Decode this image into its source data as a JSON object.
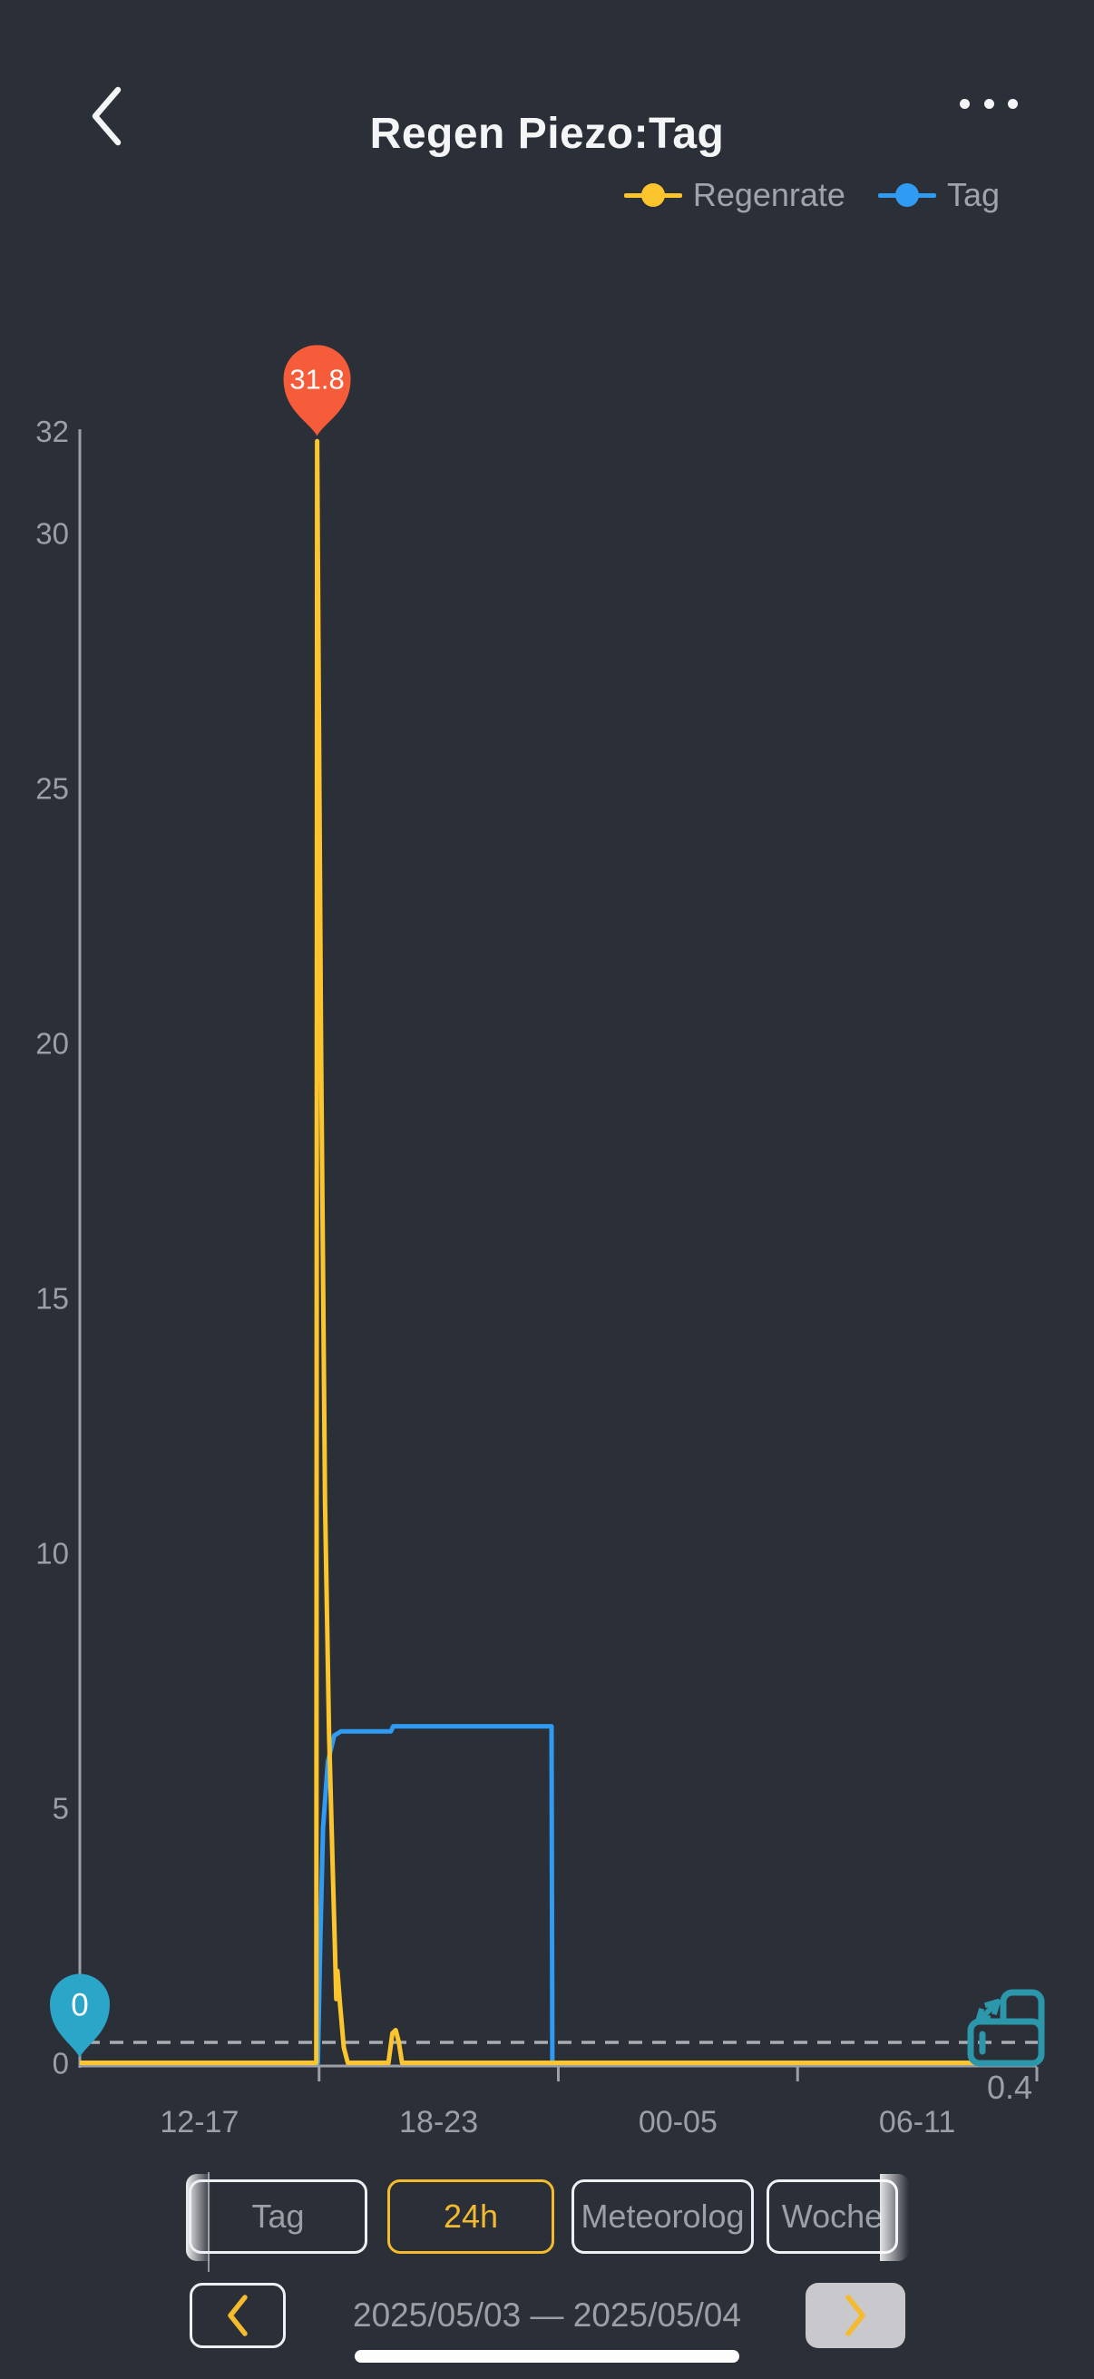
{
  "header": {
    "title": "Regen Piezo:Tag",
    "back_icon": "chevron-left",
    "menu_icon": "ellipsis-horizontal"
  },
  "legend": [
    {
      "label": "Regenrate",
      "color": "#FCC52E"
    },
    {
      "label": "Tag",
      "color": "#2F9BF2"
    }
  ],
  "chart_data": {
    "type": "line",
    "title": "Regen Piezo:Tag",
    "grid": false,
    "legend_position": "top-right",
    "x_axis": {
      "unit": "hour-of-day",
      "start_hour": 12,
      "end_hour": 36,
      "tick_hours": [
        18,
        24,
        30,
        36
      ],
      "section_labels": [
        "12-17",
        "18-23",
        "00-05",
        "06-11"
      ],
      "section_label_hours": [
        15,
        21,
        27,
        33
      ]
    },
    "y_axis": {
      "min": 0,
      "max": 32,
      "ticks": [
        0,
        5,
        10,
        15,
        20,
        25,
        30,
        32
      ]
    },
    "series": [
      {
        "name": "Tag",
        "color": "#2F9BF2",
        "points": [
          [
            12,
            0
          ],
          [
            17.97,
            0
          ],
          [
            18.03,
            2.4
          ],
          [
            18.1,
            4.6
          ],
          [
            18.22,
            5.9
          ],
          [
            18.38,
            6.42
          ],
          [
            18.55,
            6.5
          ],
          [
            19.8,
            6.5
          ],
          [
            19.86,
            6.6
          ],
          [
            23.83,
            6.6
          ],
          [
            23.85,
            0
          ],
          [
            36,
            0
          ]
        ]
      },
      {
        "name": "Regenrate",
        "color": "#FCC52E",
        "points": [
          [
            12,
            0
          ],
          [
            17.93,
            0
          ],
          [
            17.95,
            31.8
          ],
          [
            18.05,
            20
          ],
          [
            18.15,
            11
          ],
          [
            18.25,
            6.5
          ],
          [
            18.35,
            3.6
          ],
          [
            18.4,
            2.2
          ],
          [
            18.43,
            1.25
          ],
          [
            18.46,
            1.8
          ],
          [
            18.52,
            1.2
          ],
          [
            18.62,
            0.3
          ],
          [
            18.72,
            0
          ],
          [
            19.74,
            0
          ],
          [
            19.84,
            0.58
          ],
          [
            19.92,
            0.64
          ],
          [
            20.0,
            0.4
          ],
          [
            20.08,
            0
          ],
          [
            36,
            0
          ]
        ]
      }
    ],
    "markers": [
      {
        "series": "Regenrate",
        "x_hour": 17.95,
        "value": 31.8,
        "label": "31.8",
        "color": "#F75C3A",
        "text_color": "#FFFFFF"
      },
      {
        "series": "Tag",
        "x_hour": 12,
        "value": 0,
        "label": "0",
        "color": "#2CA6C8",
        "text_color": "#FFFFFF"
      }
    ],
    "reference_line": {
      "value": 0.4,
      "label": "0.4",
      "style": "dashed",
      "color": "#A9ADB2"
    },
    "axis_color": "#9BA0A6",
    "label_color": "#9BA0A6"
  },
  "rotate_icon": {
    "name": "rotate-device-icon",
    "color": "#2C96AA"
  },
  "toolbar": {
    "active_color": "#F5BB2F",
    "buttons": [
      {
        "label": "Tag",
        "active": false
      },
      {
        "label": "24h",
        "active": true
      },
      {
        "label": "Meteorolog",
        "active": false
      },
      {
        "label": "Woche",
        "active": false
      }
    ]
  },
  "date_nav": {
    "range_label": "2025/05/03 — 2025/05/04",
    "prev_icon": "chevron-left",
    "next_icon": "chevron-right",
    "prev_enabled": true,
    "next_enabled": false
  },
  "colors": {
    "background": "#2B2F37",
    "title_text": "#F4F5F7",
    "muted_text": "#9BA0A6",
    "next_button_bg": "#C8C8CD"
  }
}
